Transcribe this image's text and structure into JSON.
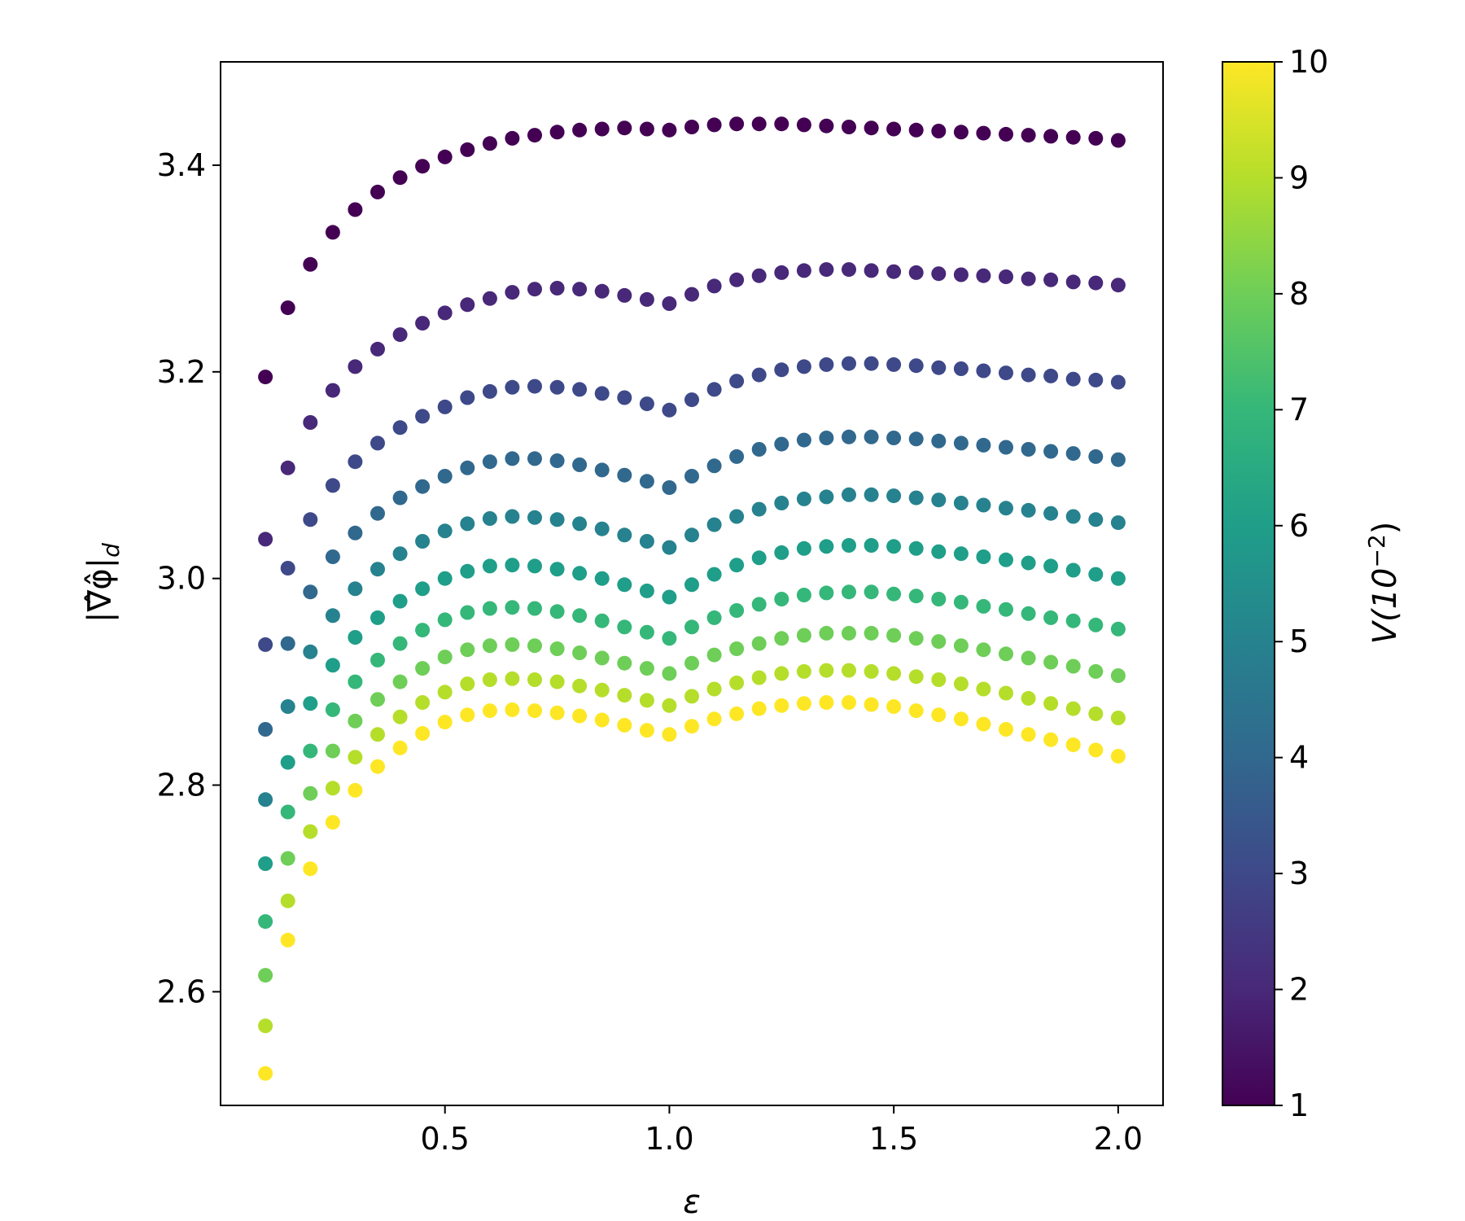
{
  "chart_data": {
    "type": "scatter",
    "xlabel": "ε",
    "ylabel_parts": {
      "main": "|∇̂φ̂|",
      "subscript": "d"
    },
    "xlim": [
      0.0,
      2.1
    ],
    "ylim": [
      2.49,
      3.5
    ],
    "xticks": [
      0.5,
      1.0,
      1.5,
      2.0
    ],
    "xtick_labels": [
      "0.5",
      "1.0",
      "1.5",
      "2.0"
    ],
    "yticks": [
      2.6,
      2.8,
      3.0,
      3.2,
      3.4
    ],
    "ytick_labels": [
      "2.6",
      "2.8",
      "3.0",
      "3.2",
      "3.4"
    ],
    "colorbar": {
      "label_parts": {
        "main": "V(10",
        "exponent": "−2",
        "close": ")"
      },
      "range": [
        1,
        10
      ],
      "ticks": [
        1,
        2,
        3,
        4,
        5,
        6,
        7,
        8,
        9,
        10
      ],
      "tick_labels": [
        "1",
        "2",
        "3",
        "4",
        "5",
        "6",
        "7",
        "8",
        "9",
        "10"
      ],
      "colormap": "viridis",
      "colormap_stops": [
        "#440154",
        "#482878",
        "#3e4989",
        "#31688e",
        "#26828e",
        "#1f9e89",
        "#35b779",
        "#6ece58",
        "#b5de2b",
        "#fde725"
      ]
    },
    "x": [
      0.1,
      0.15,
      0.2,
      0.25,
      0.3,
      0.35,
      0.4,
      0.45,
      0.5,
      0.55,
      0.6,
      0.65,
      0.7,
      0.75,
      0.8,
      0.85,
      0.9,
      0.95,
      1.0,
      1.05,
      1.1,
      1.15,
      1.2,
      1.25,
      1.3,
      1.35,
      1.4,
      1.45,
      1.5,
      1.55,
      1.6,
      1.65,
      1.7,
      1.75,
      1.8,
      1.85,
      1.9,
      1.95,
      2.0
    ],
    "series": [
      {
        "color_value": 1,
        "y": [
          3.195,
          3.262,
          3.304,
          3.335,
          3.357,
          3.374,
          3.388,
          3.399,
          3.408,
          3.415,
          3.421,
          3.426,
          3.429,
          3.432,
          3.434,
          3.435,
          3.436,
          3.435,
          3.434,
          3.437,
          3.439,
          3.44,
          3.44,
          3.44,
          3.439,
          3.438,
          3.437,
          3.436,
          3.435,
          3.434,
          3.433,
          3.432,
          3.431,
          3.43,
          3.429,
          3.428,
          3.427,
          3.426,
          3.424
        ]
      },
      {
        "color_value": 2,
        "y": [
          3.038,
          3.107,
          3.151,
          3.182,
          3.205,
          3.222,
          3.236,
          3.247,
          3.257,
          3.265,
          3.271,
          3.277,
          3.28,
          3.281,
          3.28,
          3.278,
          3.274,
          3.27,
          3.266,
          3.275,
          3.283,
          3.289,
          3.293,
          3.296,
          3.298,
          3.299,
          3.299,
          3.298,
          3.297,
          3.296,
          3.295,
          3.294,
          3.293,
          3.292,
          3.29,
          3.289,
          3.287,
          3.286,
          3.284
        ]
      },
      {
        "color_value": 3,
        "y": [
          2.936,
          3.01,
          3.057,
          3.09,
          3.113,
          3.131,
          3.146,
          3.157,
          3.166,
          3.175,
          3.181,
          3.185,
          3.186,
          3.185,
          3.183,
          3.179,
          3.175,
          3.169,
          3.163,
          3.173,
          3.183,
          3.191,
          3.197,
          3.202,
          3.205,
          3.207,
          3.208,
          3.208,
          3.207,
          3.206,
          3.204,
          3.203,
          3.201,
          3.199,
          3.197,
          3.196,
          3.193,
          3.192,
          3.19
        ]
      },
      {
        "color_value": 4,
        "y": [
          2.854,
          2.937,
          2.987,
          3.021,
          3.044,
          3.063,
          3.078,
          3.089,
          3.099,
          3.107,
          3.113,
          3.116,
          3.116,
          3.114,
          3.11,
          3.105,
          3.1,
          3.094,
          3.088,
          3.099,
          3.109,
          3.118,
          3.125,
          3.13,
          3.134,
          3.136,
          3.137,
          3.137,
          3.136,
          3.135,
          3.133,
          3.131,
          3.129,
          3.127,
          3.125,
          3.123,
          3.121,
          3.118,
          3.115
        ]
      },
      {
        "color_value": 5,
        "y": [
          2.786,
          2.876,
          2.929,
          2.964,
          2.99,
          3.009,
          3.024,
          3.036,
          3.046,
          3.053,
          3.058,
          3.06,
          3.059,
          3.057,
          3.053,
          3.048,
          3.042,
          3.036,
          3.03,
          3.042,
          3.052,
          3.06,
          3.067,
          3.073,
          3.077,
          3.079,
          3.081,
          3.081,
          3.08,
          3.078,
          3.076,
          3.073,
          3.071,
          3.068,
          3.066,
          3.063,
          3.06,
          3.057,
          3.054
        ]
      },
      {
        "color_value": 6,
        "y": [
          2.724,
          2.822,
          2.879,
          2.916,
          2.943,
          2.962,
          2.978,
          2.99,
          3.0,
          3.007,
          3.012,
          3.013,
          3.012,
          3.009,
          3.005,
          3.0,
          2.994,
          2.988,
          2.982,
          2.994,
          3.004,
          3.013,
          3.02,
          3.025,
          3.029,
          3.031,
          3.032,
          3.032,
          3.031,
          3.029,
          3.026,
          3.024,
          3.021,
          3.018,
          3.015,
          3.012,
          3.008,
          3.004,
          3.0
        ]
      },
      {
        "color_value": 7,
        "y": [
          2.668,
          2.774,
          2.833,
          2.873,
          2.9,
          2.921,
          2.937,
          2.95,
          2.96,
          2.967,
          2.971,
          2.972,
          2.971,
          2.968,
          2.964,
          2.959,
          2.953,
          2.948,
          2.942,
          2.953,
          2.962,
          2.969,
          2.975,
          2.98,
          2.984,
          2.986,
          2.987,
          2.987,
          2.985,
          2.983,
          2.98,
          2.977,
          2.973,
          2.97,
          2.966,
          2.962,
          2.959,
          2.955,
          2.951
        ]
      },
      {
        "color_value": 8,
        "y": [
          2.616,
          2.729,
          2.792,
          2.833,
          2.862,
          2.883,
          2.9,
          2.913,
          2.924,
          2.931,
          2.935,
          2.936,
          2.935,
          2.932,
          2.928,
          2.923,
          2.918,
          2.913,
          2.908,
          2.918,
          2.926,
          2.932,
          2.937,
          2.942,
          2.945,
          2.947,
          2.947,
          2.947,
          2.945,
          2.942,
          2.939,
          2.935,
          2.931,
          2.927,
          2.923,
          2.919,
          2.915,
          2.91,
          2.906
        ]
      },
      {
        "color_value": 9,
        "y": [
          2.567,
          2.688,
          2.755,
          2.797,
          2.827,
          2.849,
          2.866,
          2.88,
          2.89,
          2.898,
          2.902,
          2.903,
          2.902,
          2.9,
          2.896,
          2.892,
          2.887,
          2.882,
          2.877,
          2.886,
          2.893,
          2.899,
          2.904,
          2.908,
          2.91,
          2.911,
          2.911,
          2.91,
          2.908,
          2.905,
          2.902,
          2.898,
          2.893,
          2.889,
          2.884,
          2.879,
          2.874,
          2.869,
          2.865
        ]
      },
      {
        "color_value": 10,
        "y": [
          2.521,
          2.65,
          2.719,
          2.764,
          2.795,
          2.818,
          2.836,
          2.85,
          2.861,
          2.868,
          2.872,
          2.873,
          2.872,
          2.87,
          2.867,
          2.863,
          2.858,
          2.853,
          2.849,
          2.857,
          2.864,
          2.869,
          2.874,
          2.877,
          2.879,
          2.88,
          2.88,
          2.878,
          2.876,
          2.872,
          2.868,
          2.864,
          2.859,
          2.854,
          2.849,
          2.844,
          2.839,
          2.834,
          2.828
        ]
      }
    ]
  }
}
